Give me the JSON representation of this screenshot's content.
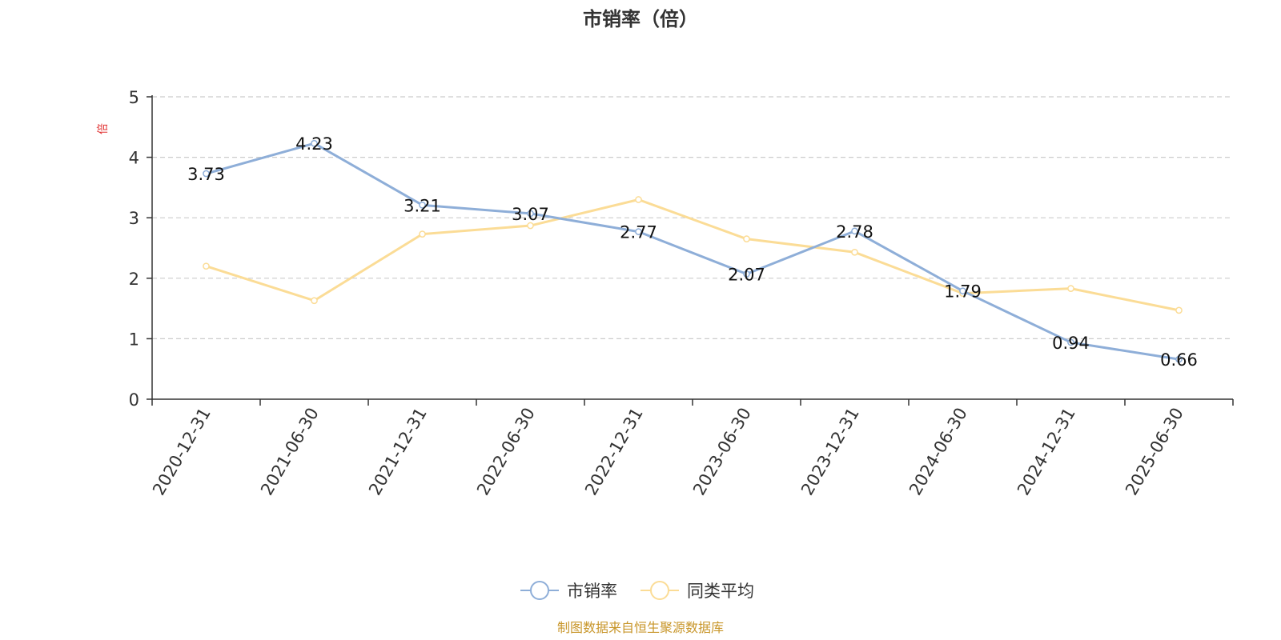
{
  "chart_data": {
    "type": "line",
    "title": "市销率（倍）",
    "ylabel": "倍",
    "xlabel": "",
    "ylim": [
      0,
      5
    ],
    "yticks": [
      0,
      1,
      2,
      3,
      4,
      5
    ],
    "grid": true,
    "legend_position": "bottom-center",
    "categories": [
      "2020-12-31",
      "2021-06-30",
      "2021-12-31",
      "2022-06-30",
      "2022-12-31",
      "2023-06-30",
      "2023-12-31",
      "2024-06-30",
      "2024-12-31",
      "2025-06-30"
    ],
    "series": [
      {
        "name": "市销率",
        "color": "#8eaed8",
        "values": [
          3.73,
          4.23,
          3.21,
          3.07,
          2.77,
          2.07,
          2.78,
          1.79,
          0.94,
          0.66
        ],
        "show_labels": true
      },
      {
        "name": "同类平均",
        "color": "#fbdc96",
        "values": [
          2.2,
          1.63,
          2.73,
          2.87,
          3.3,
          2.65,
          2.43,
          1.75,
          1.83,
          1.47
        ],
        "show_labels": false
      }
    ],
    "source": "制图数据来自恒生聚源数据库"
  }
}
